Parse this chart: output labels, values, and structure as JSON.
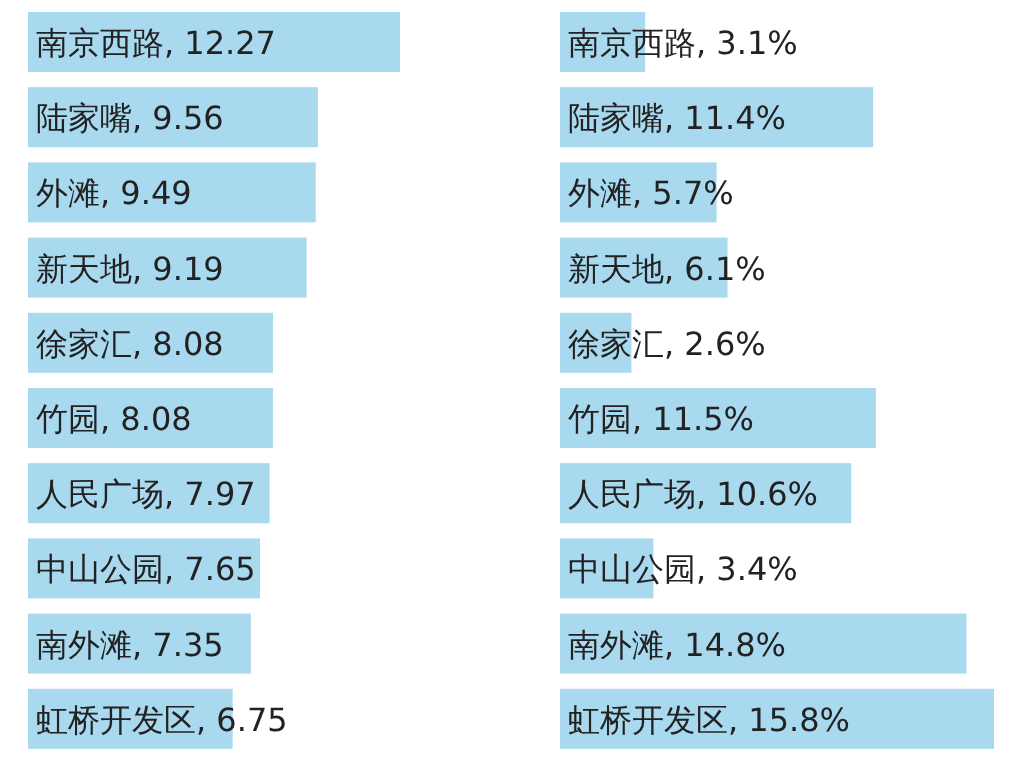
{
  "chart_data": [
    {
      "type": "bar",
      "orientation": "horizontal",
      "color": "#a9d9ef",
      "categories": [
        "南京西路",
        "陆家嘴",
        "外滩",
        "新天地",
        "徐家汇",
        "竹园",
        "人民广场",
        "中山公园",
        "南外滩",
        "虹桥开发区"
      ],
      "values": [
        12.27,
        9.56,
        9.49,
        9.19,
        8.08,
        8.08,
        7.97,
        7.65,
        7.35,
        6.75
      ],
      "value_labels": [
        ", 12.27",
        ", 9.56",
        ", 9.49",
        ", 9.19",
        ", 8.08",
        ", 8.08",
        ", 7.97",
        ", 7.65",
        ", 7.35",
        ", 6.75"
      ]
    },
    {
      "type": "bar",
      "orientation": "horizontal",
      "color": "#a9d9ef",
      "categories": [
        "南京西路",
        "陆家嘴",
        "外滩",
        "新天地",
        "徐家汇",
        "竹园",
        "人民广场",
        "中山公园",
        "南外滩",
        "虹桥开发区"
      ],
      "values": [
        3.1,
        11.4,
        5.7,
        6.1,
        2.6,
        11.5,
        10.6,
        3.4,
        14.8,
        15.8
      ],
      "value_labels": [
        ", 3.1%",
        ", 11.4%",
        ", 5.7%",
        ", 6.1%",
        ", 2.6%",
        ", 11.5%",
        ", 10.6%",
        ", 3.4%",
        ", 14.8%",
        ", 15.8%"
      ]
    }
  ]
}
